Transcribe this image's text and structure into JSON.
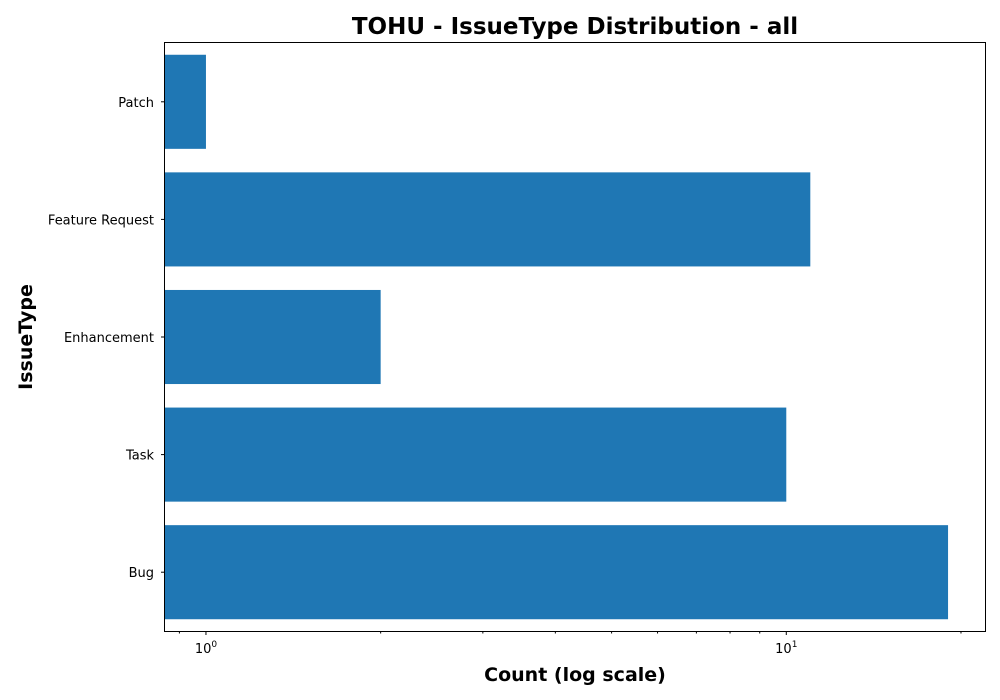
{
  "chart_data": {
    "type": "bar",
    "orientation": "horizontal",
    "title": "TOHU - IssueType Distribution - all",
    "xlabel": "Count (log scale)",
    "ylabel": "IssueType",
    "x_scale": "log",
    "xlim": [
      0.85,
      22
    ],
    "x_major_ticks": [
      {
        "value": 1,
        "base": "10",
        "exp": "0"
      },
      {
        "value": 10,
        "base": "10",
        "exp": "1"
      }
    ],
    "x_minor_ticks": [
      0.9,
      2,
      3,
      4,
      5,
      6,
      7,
      8,
      9,
      20
    ],
    "categories": [
      "Bug",
      "Task",
      "Enhancement",
      "Feature Request",
      "Patch"
    ],
    "values": [
      19,
      10,
      2,
      11,
      1
    ],
    "grid": false,
    "legend": "none",
    "bar_color": "#1f77b4"
  }
}
